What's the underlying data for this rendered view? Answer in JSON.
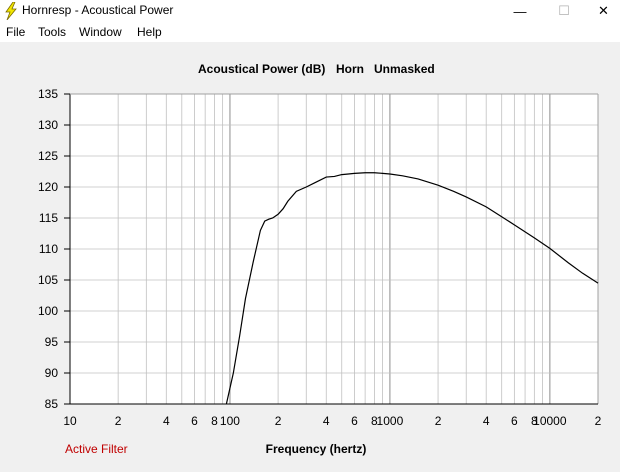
{
  "window": {
    "title": "Hornresp - Acoustical Power",
    "minimize_glyph": "—",
    "maximize_glyph": "☐",
    "close_glyph": "✕"
  },
  "menu": {
    "items": [
      {
        "label": "File"
      },
      {
        "label": "Tools"
      },
      {
        "label": "Window"
      },
      {
        "label": "Help"
      }
    ]
  },
  "status": {
    "active_filter": "Active Filter"
  },
  "colors": {
    "grid": "#c0c0c0",
    "curve": "#000000",
    "plot_bg": "#ffffff",
    "active_filter": "#c00000"
  },
  "chart_data": {
    "type": "line",
    "title_parts": [
      "Acoustical Power (dB)",
      "Horn",
      "Unmasked"
    ],
    "xlabel": "Frequency (hertz)",
    "ylabel": "",
    "x_scale": "log",
    "xlim": [
      10,
      20000
    ],
    "ylim": [
      85,
      135
    ],
    "y_ticks": [
      135,
      130,
      125,
      120,
      115,
      110,
      105,
      100,
      95,
      90,
      85
    ],
    "x_tick_labels": [
      {
        "x": 10,
        "label": "10"
      },
      {
        "x": 20,
        "label": "2"
      },
      {
        "x": 40,
        "label": "4"
      },
      {
        "x": 60,
        "label": "6"
      },
      {
        "x": 80,
        "label": "8"
      },
      {
        "x": 100,
        "label": "100"
      },
      {
        "x": 200,
        "label": "2"
      },
      {
        "x": 400,
        "label": "4"
      },
      {
        "x": 600,
        "label": "6"
      },
      {
        "x": 800,
        "label": "8"
      },
      {
        "x": 1000,
        "label": "1000"
      },
      {
        "x": 2000,
        "label": "2"
      },
      {
        "x": 4000,
        "label": "4"
      },
      {
        "x": 6000,
        "label": "6"
      },
      {
        "x": 8000,
        "label": "8"
      },
      {
        "x": 10000,
        "label": "10000"
      },
      {
        "x": 20000,
        "label": "2"
      }
    ],
    "grid": true,
    "series": [
      {
        "x": [
          95,
          105,
          115,
          125,
          140,
          155,
          165,
          175,
          185,
          200,
          215,
          230,
          260,
          300,
          340,
          400,
          450,
          500,
          550,
          600,
          700,
          800,
          900,
          1000,
          1200,
          1500,
          2000,
          2500,
          3000,
          4000,
          5000,
          6000,
          8000,
          10000,
          13000,
          16000,
          20000
        ],
        "y": [
          85,
          90,
          96,
          102,
          108,
          113,
          114.5,
          114.8,
          115,
          115.6,
          116.5,
          117.7,
          119.3,
          120,
          120.7,
          121.6,
          121.7,
          122,
          122.1,
          122.2,
          122.3,
          122.3,
          122.2,
          122.1,
          121.8,
          121.3,
          120.3,
          119.3,
          118.4,
          116.8,
          115.2,
          113.9,
          111.8,
          110.1,
          107.8,
          106.1,
          104.5
        ]
      }
    ]
  }
}
